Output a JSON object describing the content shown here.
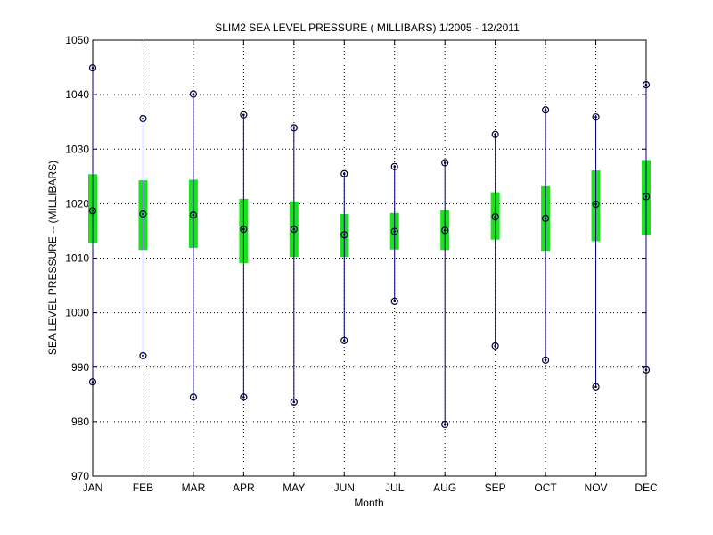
{
  "chart_data": {
    "type": "boxplot",
    "title": "SLIM2  SEA LEVEL PRESSURE ( MILLIBARS) 1/2005 - 12/2011",
    "xlabel": "Month",
    "ylabel": "SEA LEVEL PRESSURE -- (MILLIBARS)",
    "ylim": [
      970,
      1050
    ],
    "yticks": [
      970,
      980,
      990,
      1000,
      1010,
      1020,
      1030,
      1040,
      1050
    ],
    "grid": true,
    "categories": [
      "JAN",
      "FEB",
      "MAR",
      "APR",
      "MAY",
      "JUN",
      "JUL",
      "AUG",
      "SEP",
      "OCT",
      "NOV",
      "DEC"
    ],
    "series": [
      {
        "min": 987.3,
        "box_low": 1012.8,
        "mean": 1018.7,
        "box_high": 1025.4,
        "max": 1044.9
      },
      {
        "min": 992.1,
        "box_low": 1011.5,
        "mean": 1018.1,
        "box_high": 1024.3,
        "max": 1035.6
      },
      {
        "min": 984.5,
        "box_low": 1011.9,
        "mean": 1017.9,
        "box_high": 1024.4,
        "max": 1040.1
      },
      {
        "min": 984.5,
        "box_low": 1009.1,
        "mean": 1015.3,
        "box_high": 1020.9,
        "max": 1036.3
      },
      {
        "min": 983.6,
        "box_low": 1010.2,
        "mean": 1015.3,
        "box_high": 1020.4,
        "max": 1033.9
      },
      {
        "min": 994.9,
        "box_low": 1010.2,
        "mean": 1014.3,
        "box_high": 1018.1,
        "max": 1025.5
      },
      {
        "min": 1002.1,
        "box_low": 1011.6,
        "mean": 1014.9,
        "box_high": 1018.3,
        "max": 1026.8
      },
      {
        "min": 979.5,
        "box_low": 1011.5,
        "mean": 1015.1,
        "box_high": 1018.8,
        "max": 1027.5
      },
      {
        "min": 993.9,
        "box_low": 1013.4,
        "mean": 1017.6,
        "box_high": 1022.1,
        "max": 1032.7
      },
      {
        "min": 991.3,
        "box_low": 1011.2,
        "mean": 1017.3,
        "box_high": 1023.2,
        "max": 1037.2
      },
      {
        "min": 986.4,
        "box_low": 1013.1,
        "mean": 1019.9,
        "box_high": 1026.1,
        "max": 1035.9
      },
      {
        "min": 989.5,
        "box_low": 1014.2,
        "mean": 1021.3,
        "box_high": 1028.0,
        "max": 1041.8
      }
    ],
    "colors": {
      "whisker": "#000080",
      "box": "#1fe01f",
      "marker": "#000033",
      "grid": "#000000"
    }
  }
}
